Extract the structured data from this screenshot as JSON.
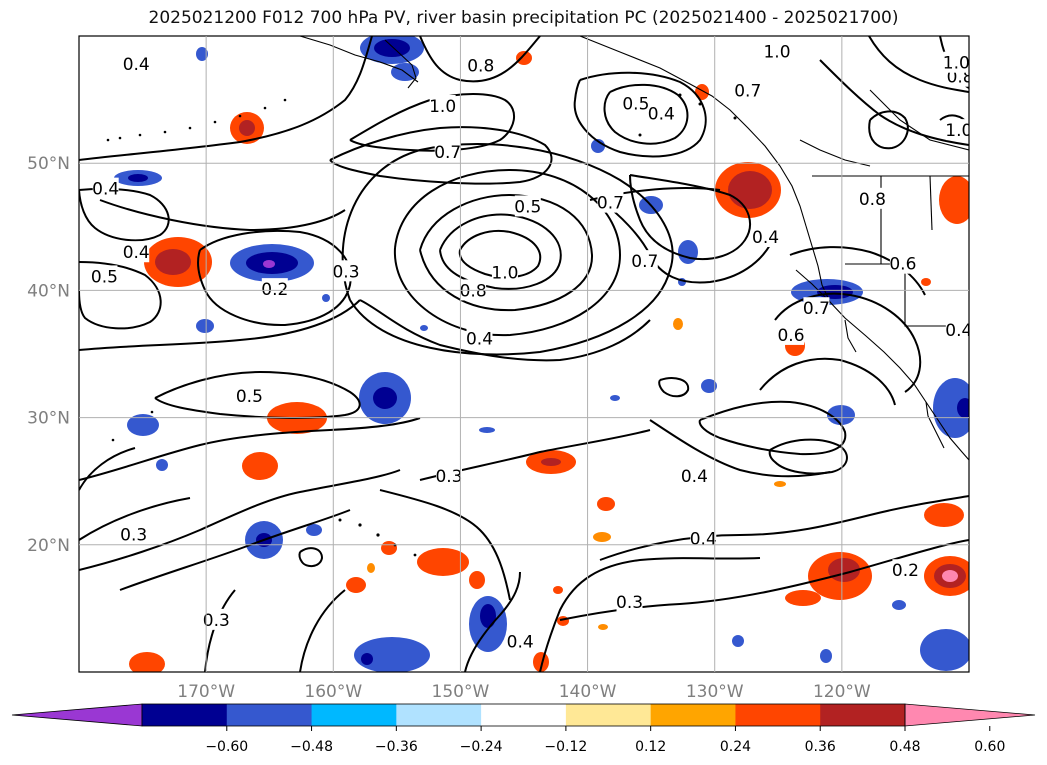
{
  "title": "2025021200 F012 700 hPa PV, river basin precipitation PC (2025021400 - 2025021700)",
  "map": {
    "lon_range": [
      -180,
      -110
    ],
    "lat_range": [
      10,
      60
    ],
    "lon_ticks": [
      {
        "value": -170,
        "label": "170°W"
      },
      {
        "value": -160,
        "label": "160°W"
      },
      {
        "value": -150,
        "label": "150°W"
      },
      {
        "value": -140,
        "label": "140°W"
      },
      {
        "value": -130,
        "label": "130°W"
      },
      {
        "value": -120,
        "label": "120°W"
      }
    ],
    "lat_ticks": [
      {
        "value": 20,
        "label": "20°N"
      },
      {
        "value": 30,
        "label": "30°N"
      },
      {
        "value": 40,
        "label": "40°N"
      },
      {
        "value": 50,
        "label": "50°N"
      }
    ],
    "grid": true,
    "contour_variable": "700 hPa PV",
    "contour_labels": [
      {
        "text": "0.4",
        "lon": -175.5,
        "lat": 57.8
      },
      {
        "text": "0.8",
        "lon": -148.4,
        "lat": 57.7
      },
      {
        "text": "1.0",
        "lon": -151.4,
        "lat": 54.5
      },
      {
        "text": "0.5",
        "lon": -136.2,
        "lat": 54.7
      },
      {
        "text": "0.4",
        "lon": -134.2,
        "lat": 53.9
      },
      {
        "text": "1.0",
        "lon": -125.1,
        "lat": 58.8
      },
      {
        "text": "0.7",
        "lon": -127.4,
        "lat": 55.7
      },
      {
        "text": "0.8",
        "lon": -110.7,
        "lat": 56.8
      },
      {
        "text": "1.0",
        "lon": -111.0,
        "lat": 57.9
      },
      {
        "text": "1.0",
        "lon": -110.8,
        "lat": 52.6
      },
      {
        "text": "0.7",
        "lon": -151.0,
        "lat": 50.9
      },
      {
        "text": "0.4",
        "lon": -177.9,
        "lat": 48.0
      },
      {
        "text": "0.5",
        "lon": -144.7,
        "lat": 46.6
      },
      {
        "text": "0.7",
        "lon": -138.2,
        "lat": 46.9
      },
      {
        "text": "0.8",
        "lon": -117.6,
        "lat": 47.2
      },
      {
        "text": "0.4",
        "lon": -126.0,
        "lat": 44.2
      },
      {
        "text": "0.4",
        "lon": -175.5,
        "lat": 43.0
      },
      {
        "text": "0.3",
        "lon": -159.0,
        "lat": 41.5
      },
      {
        "text": "0.2",
        "lon": -164.6,
        "lat": 40.1
      },
      {
        "text": "0.5",
        "lon": -178.0,
        "lat": 41.1
      },
      {
        "text": "1.0",
        "lon": -146.5,
        "lat": 41.4
      },
      {
        "text": "0.8",
        "lon": -149.0,
        "lat": 40.0
      },
      {
        "text": "0.7",
        "lon": -135.5,
        "lat": 42.3
      },
      {
        "text": "0.6",
        "lon": -115.2,
        "lat": 42.1
      },
      {
        "text": "0.7",
        "lon": -122.0,
        "lat": 38.6
      },
      {
        "text": "0.6",
        "lon": -124.0,
        "lat": 36.5
      },
      {
        "text": "0.4",
        "lon": -148.5,
        "lat": 36.2
      },
      {
        "text": "0.4",
        "lon": -110.8,
        "lat": 36.9
      },
      {
        "text": "0.5",
        "lon": -166.6,
        "lat": 31.7
      },
      {
        "text": "0.3",
        "lon": -150.9,
        "lat": 25.4
      },
      {
        "text": "0.4",
        "lon": -131.6,
        "lat": 25.4
      },
      {
        "text": "0.3",
        "lon": -175.7,
        "lat": 20.8
      },
      {
        "text": "0.4",
        "lon": -130.9,
        "lat": 20.5
      },
      {
        "text": "0.2",
        "lon": -115.0,
        "lat": 18.0
      },
      {
        "text": "0.3",
        "lon": -136.7,
        "lat": 15.5
      },
      {
        "text": "0.3",
        "lon": -169.2,
        "lat": 14.1
      },
      {
        "text": "0.4",
        "lon": -145.3,
        "lat": 12.4
      }
    ]
  },
  "colorbar": {
    "tick_labels": [
      "−0.60",
      "−0.48",
      "−0.36",
      "−0.24",
      "−0.12",
      "0.12",
      "0.24",
      "0.36",
      "0.48",
      "0.60"
    ],
    "colors": [
      "#9a37d3",
      "#000092",
      "#3558cf",
      "#00b8ff",
      "#b0e2ff",
      "#ffffff",
      "#ffe896",
      "#ffa500",
      "#ff4500",
      "#b22222",
      "#ff88b0"
    ]
  }
}
